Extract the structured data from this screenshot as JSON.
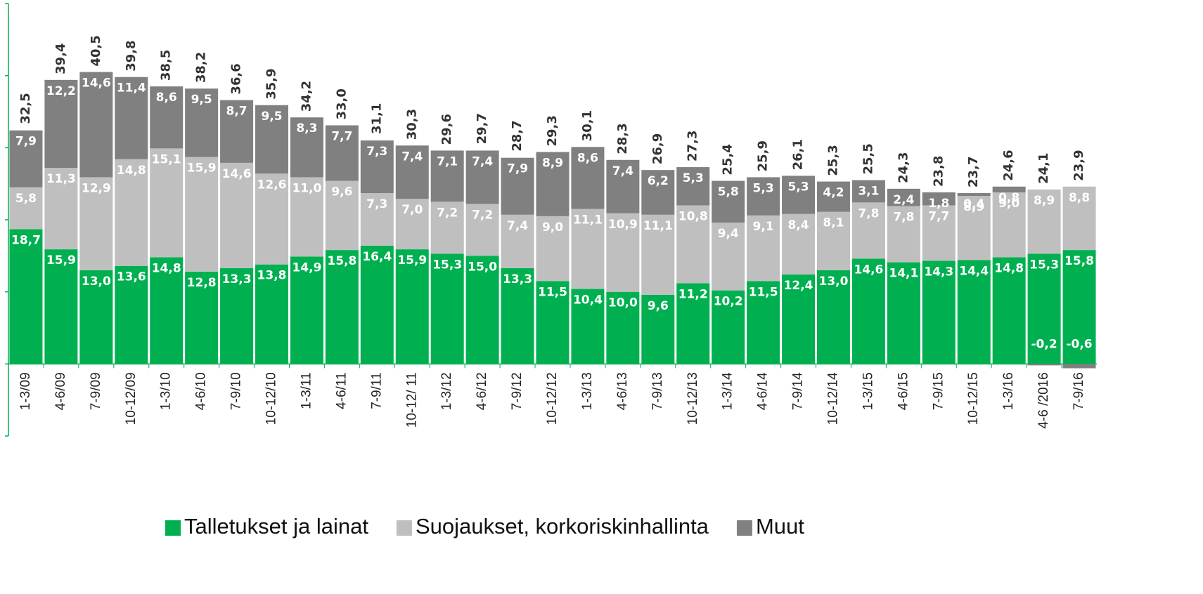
{
  "chart_data": {
    "type": "stacked_bar",
    "categories": [
      "1-3/09",
      "4-6/09",
      "7-9/09",
      "10-12/09",
      "1-3/10",
      "4-6/10",
      "7-9/10",
      "10-12/10",
      "1-3/11",
      "4-6/11",
      "7-9/11",
      "10-12/ 11",
      "1-3/12",
      "4-6/12",
      "7-9/12",
      "10-12/12",
      "1-3/13",
      "4-6/13",
      "7-9/13",
      "10-12/13",
      "1-3/14",
      "4-6/14",
      "7-9/14",
      "10-12/14",
      "1-3/15",
      "4-6/15",
      "7-9/15",
      "10-12/15",
      "1-3/16",
      "4-6 /2016",
      "7-9/16"
    ],
    "series": [
      {
        "name": "Talletukset ja lainat",
        "color": "#00b050",
        "values": [
          18.7,
          15.9,
          13.0,
          13.6,
          14.8,
          12.8,
          13.3,
          13.8,
          14.9,
          15.8,
          16.4,
          15.9,
          15.3,
          15.0,
          13.3,
          11.5,
          10.4,
          10.0,
          9.6,
          11.2,
          10.2,
          11.5,
          12.4,
          13.0,
          14.6,
          14.1,
          14.3,
          14.4,
          14.8,
          15.3,
          15.8
        ],
        "value_labels": [
          "18,7",
          "15,9",
          "13,0",
          "13,6",
          "14,8",
          "12,8",
          "13,3",
          "13,8",
          "14,9",
          "15,8",
          "16,4",
          "15,9",
          "15,3",
          "15,0",
          "13,3",
          "11,5",
          "10,4",
          "10,0",
          "9,6",
          "11,2",
          "10,2",
          "11,5",
          "12,4",
          "13,0",
          "14,6",
          "14,1",
          "14,3",
          "14,4",
          "14,8",
          "15,3",
          "15,8"
        ]
      },
      {
        "name": "Suojaukset, korkoriskinhallinta",
        "color": "#bfbfbf",
        "values": [
          5.8,
          11.3,
          12.9,
          14.8,
          15.1,
          15.9,
          14.6,
          12.6,
          11.0,
          9.6,
          7.3,
          7.0,
          7.2,
          7.2,
          7.4,
          9.0,
          11.1,
          10.9,
          11.1,
          10.8,
          9.4,
          9.1,
          8.4,
          8.1,
          7.8,
          7.8,
          7.7,
          8.9,
          9.0,
          8.9,
          8.8
        ],
        "value_labels": [
          "5,8",
          "11,3",
          "12,9",
          "14,8",
          "15,1",
          "15,9",
          "14,6",
          "12,6",
          "11,0",
          "9,6",
          "7,3",
          "7,0",
          "7,2",
          "7,2",
          "7,4",
          "9,0",
          "11,1",
          "10,9",
          "11,1",
          "10,8",
          "9,4",
          "9,1",
          "8,4",
          "8,1",
          "7,8",
          "7,8",
          "7,7",
          "8,9",
          "9,0",
          "8,9",
          "8,8"
        ]
      },
      {
        "name": "Muut",
        "color": "#808080",
        "values": [
          7.9,
          12.2,
          14.6,
          11.4,
          8.6,
          9.5,
          8.7,
          9.5,
          8.3,
          7.7,
          7.3,
          7.4,
          7.1,
          7.4,
          7.9,
          8.9,
          8.6,
          7.4,
          6.2,
          5.3,
          5.8,
          5.3,
          5.3,
          4.2,
          3.1,
          2.4,
          1.8,
          0.4,
          0.8,
          -0.2,
          -0.6
        ],
        "value_labels": [
          "7,9",
          "12,2",
          "14,6",
          "11,4",
          "8,6",
          "9,5",
          "8,7",
          "9,5",
          "8,3",
          "7,7",
          "7,3",
          "7,4",
          "7,1",
          "7,4",
          "7,9",
          "8,9",
          "8,6",
          "7,4",
          "6,2",
          "5,3",
          "5,8",
          "5,3",
          "5,3",
          "4,2",
          "3,1",
          "2,4",
          "1,8",
          "0,4",
          "0,8",
          "-0,2",
          "-0,6"
        ]
      }
    ],
    "totals": [
      32.5,
      39.4,
      40.5,
      39.8,
      38.5,
      38.2,
      36.6,
      35.9,
      34.2,
      33.0,
      31.1,
      30.3,
      29.6,
      29.7,
      28.7,
      29.3,
      30.1,
      28.3,
      26.9,
      27.3,
      25.4,
      25.9,
      26.1,
      25.3,
      25.5,
      24.3,
      23.8,
      23.7,
      24.6,
      24.1,
      23.9
    ],
    "total_labels": [
      "32,5",
      "39,4",
      "40,5",
      "39,8",
      "38,5",
      "38,2",
      "36,6",
      "35,9",
      "34,2",
      "33,0",
      "31,1",
      "30,3",
      "29,6",
      "29,7",
      "28,7",
      "29,3",
      "30,1",
      "28,3",
      "26,9",
      "27,3",
      "25,4",
      "25,9",
      "26,1",
      "25,3",
      "25,5",
      "24,3",
      "23,8",
      "23,7",
      "24,6",
      "24,1",
      "23,9"
    ],
    "ylim": [
      -10,
      50
    ],
    "yticks": [
      -10,
      0,
      10,
      20,
      30,
      40,
      50
    ],
    "legend": "bottom"
  }
}
